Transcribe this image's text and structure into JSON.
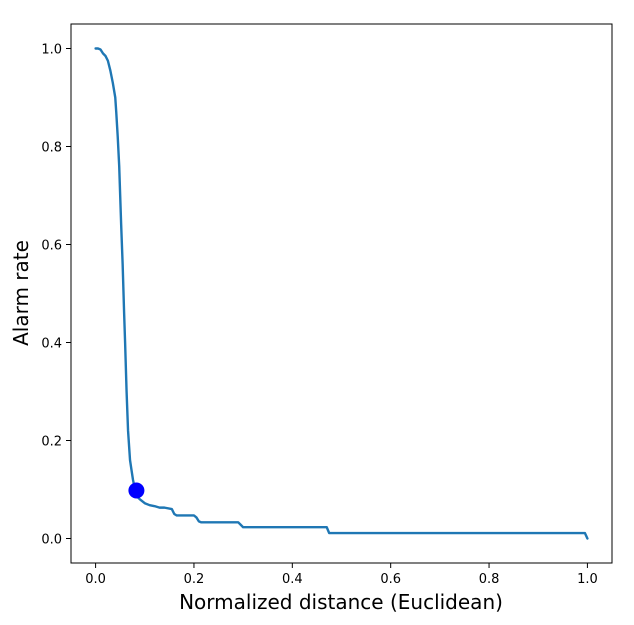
{
  "chart_data": {
    "type": "line",
    "title": "",
    "xlabel": "Normalized distance (Euclidean)",
    "ylabel": "Alarm rate",
    "xlim": [
      -0.05,
      1.05
    ],
    "ylim": [
      -0.05,
      1.05
    ],
    "xticks": [
      0.0,
      0.2,
      0.4,
      0.6,
      0.8,
      1.0
    ],
    "xtick_labels": [
      "0.0",
      "0.2",
      "0.4",
      "0.6",
      "0.8",
      "1.0"
    ],
    "yticks": [
      0.0,
      0.2,
      0.4,
      0.6,
      0.8,
      1.0
    ],
    "ytick_labels": [
      "0.0",
      "0.2",
      "0.4",
      "0.6",
      "0.8",
      "1.0"
    ],
    "grid": false,
    "series": [
      {
        "color": "#1f77b4",
        "x": [
          0.0,
          0.005,
          0.01,
          0.015,
          0.02,
          0.025,
          0.03,
          0.035,
          0.04,
          0.042,
          0.045,
          0.048,
          0.05,
          0.052,
          0.055,
          0.058,
          0.06,
          0.063,
          0.066,
          0.07,
          0.073,
          0.076,
          0.08,
          0.085,
          0.09,
          0.1,
          0.11,
          0.12,
          0.13,
          0.14,
          0.155,
          0.16,
          0.165,
          0.2,
          0.205,
          0.21,
          0.215,
          0.29,
          0.295,
          0.3,
          0.305,
          0.47,
          0.475,
          0.99,
          0.995,
          1.0
        ],
        "y": [
          1.0,
          1.0,
          0.998,
          0.99,
          0.985,
          0.975,
          0.955,
          0.93,
          0.9,
          0.87,
          0.82,
          0.76,
          0.7,
          0.64,
          0.56,
          0.46,
          0.4,
          0.3,
          0.22,
          0.16,
          0.14,
          0.12,
          0.1,
          0.085,
          0.08,
          0.072,
          0.068,
          0.066,
          0.063,
          0.063,
          0.06,
          0.05,
          0.047,
          0.047,
          0.043,
          0.035,
          0.033,
          0.033,
          0.028,
          0.023,
          0.023,
          0.023,
          0.011,
          0.011,
          0.011,
          0.0
        ]
      }
    ],
    "marker": {
      "x": 0.083,
      "y": 0.098,
      "color": "#0000ff"
    }
  }
}
